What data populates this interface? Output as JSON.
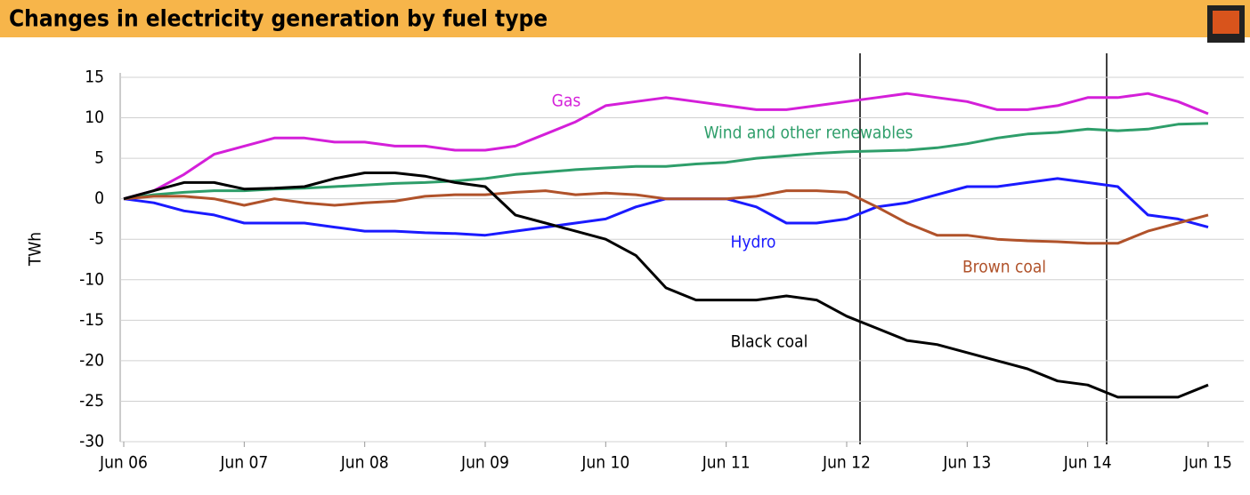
{
  "chart_data": {
    "type": "line",
    "title": "Changes in electricity generation by fuel type",
    "y_label": "TWh",
    "categories": [
      "Jun 06",
      null,
      null,
      null,
      "Jun 07",
      null,
      null,
      null,
      "Jun 08",
      null,
      null,
      null,
      "Jun 09",
      null,
      null,
      null,
      "Jun 10",
      null,
      null,
      null,
      "Jun 11",
      null,
      null,
      null,
      "Jun 12",
      null,
      null,
      null,
      "Jun 13",
      null,
      null,
      null,
      "Jun 14",
      null,
      null,
      null,
      "Jun 15"
    ],
    "ylim": [
      -30,
      15
    ],
    "yticks": [
      -30,
      -25,
      -20,
      -15,
      -10,
      -5,
      0,
      5,
      10,
      15
    ],
    "grid": true,
    "series": [
      {
        "name": "Gas",
        "color": "#d41fd9",
        "values": [
          0,
          1,
          3,
          5.5,
          6.5,
          7.5,
          7.5,
          7,
          7,
          6.5,
          6.5,
          6,
          6,
          6.5,
          8,
          9.5,
          11.5,
          12,
          12.5,
          12,
          11.5,
          11,
          11,
          11.5,
          12,
          12.5,
          13,
          12.5,
          12,
          11,
          11,
          11.5,
          12.5,
          12.5,
          13,
          12,
          10.5
        ]
      },
      {
        "name": "Wind and other renewables",
        "color": "#2e9e6a",
        "values": [
          0,
          0.5,
          0.8,
          1,
          1,
          1.2,
          1.3,
          1.5,
          1.7,
          1.9,
          2,
          2.2,
          2.5,
          3,
          3.3,
          3.6,
          3.8,
          4,
          4,
          4.3,
          4.5,
          5,
          5.3,
          5.6,
          5.8,
          5.9,
          6,
          6.3,
          6.8,
          7.5,
          8,
          8.2,
          8.6,
          8.4,
          8.6,
          9.2,
          9.3
        ]
      },
      {
        "name": "Hydro",
        "color": "#1a1aff",
        "values": [
          0,
          -0.5,
          -1.5,
          -2,
          -3,
          -3,
          -3,
          -3.5,
          -4,
          -4,
          -4.2,
          -4.3,
          -4.5,
          -4,
          -3.5,
          -3,
          -2.5,
          -1,
          0,
          0,
          0,
          -1,
          -3,
          -3,
          -2.5,
          -1,
          -0.5,
          0.5,
          1.5,
          1.5,
          2,
          2.5,
          2,
          1.5,
          -2,
          -2.5,
          -3.5
        ]
      },
      {
        "name": "Brown coal",
        "color": "#b0522a",
        "values": [
          0,
          0.3,
          0.3,
          0,
          -0.8,
          0,
          -0.5,
          -0.8,
          -0.5,
          -0.3,
          0.3,
          0.5,
          0.5,
          0.8,
          1,
          0.5,
          0.7,
          0.5,
          0,
          0,
          0,
          0.3,
          1,
          1,
          0.8,
          -1,
          -3,
          -4.5,
          -4.5,
          -5,
          -5.2,
          -5.3,
          -5.5,
          -5.5,
          -4,
          -3,
          -2
        ]
      },
      {
        "name": "Black coal",
        "color": "#000000",
        "values": [
          0,
          1,
          2,
          2,
          1.2,
          1.3,
          1.5,
          2.5,
          3.2,
          3.2,
          2.8,
          2,
          1.5,
          -2,
          -3,
          -4,
          -5,
          -7,
          -11,
          -12.5,
          -12.5,
          -12.5,
          -12,
          -12.5,
          -14.5,
          -16,
          -17.5,
          -18,
          -19,
          -20,
          -21,
          -22.5,
          -23,
          -24.5,
          -24.5,
          -24.5,
          -23
        ]
      }
    ]
  }
}
